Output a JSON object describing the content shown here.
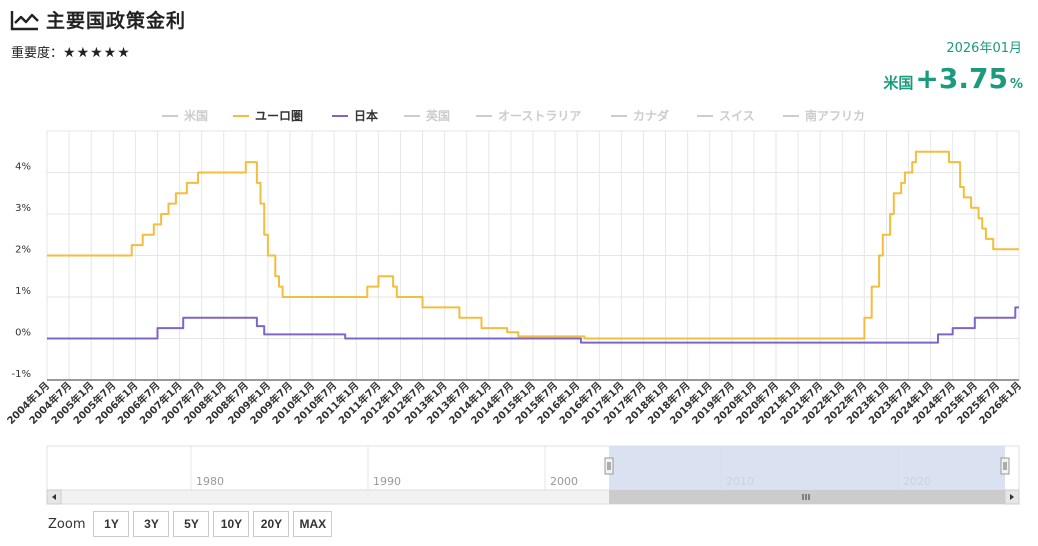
{
  "header": {
    "title": "主要国政策金利",
    "importance_label": "重要度：",
    "importance_stars": "★★★★★"
  },
  "current_rate": {
    "date": "2026年01月",
    "country": "米国",
    "value": "+3.75",
    "unit": "%"
  },
  "zoom": {
    "label": "Zoom",
    "buttons": [
      "1Y",
      "3Y",
      "5Y",
      "10Y",
      "20Y",
      "MAX"
    ]
  },
  "navigator": {
    "decades": [
      "1980",
      "1990",
      "2000",
      "2010",
      "2020"
    ]
  },
  "colors": {
    "euro": "#f3bd3e",
    "japan": "#8065c9",
    "hidden": "#cccccc",
    "accent": "#1a9b7d",
    "navigator_mask": "#d3dcef"
  },
  "chart_data": {
    "type": "line",
    "step": true,
    "legend_position": "top",
    "legend": [
      {
        "name": "米国",
        "visible": false
      },
      {
        "name": "ユーロ圏",
        "visible": true
      },
      {
        "name": "日本",
        "visible": true
      },
      {
        "name": "英国",
        "visible": false
      },
      {
        "name": "オーストラリア",
        "visible": false
      },
      {
        "name": "カナダ",
        "visible": false
      },
      {
        "name": "スイス",
        "visible": false
      },
      {
        "name": "南アフリカ",
        "visible": false
      }
    ],
    "ylim": [
      -1,
      5
    ],
    "ytick_labels": [
      "-1%",
      "0%",
      "1%",
      "2%",
      "3%",
      "4%"
    ],
    "xlim": [
      "2004年1月",
      "2026年1月"
    ],
    "xtick_labels": [
      "2004年1月",
      "2004年7月",
      "2005年1月",
      "2005年7月",
      "2006年1月",
      "2006年7月",
      "2007年1月",
      "2007年7月",
      "2008年1月",
      "2008年7月",
      "2009年1月",
      "2009年7月",
      "2010年1月",
      "2010年7月",
      "2011年1月",
      "2011年7月",
      "2012年1月",
      "2012年7月",
      "2013年1月",
      "2013年7月",
      "2014年1月",
      "2014年7月",
      "2015年1月",
      "2015年7月",
      "2016年1月",
      "2016年7月",
      "2017年1月",
      "2017年7月",
      "2018年1月",
      "2018年7月",
      "2019年1月",
      "2019年7月",
      "2020年1月",
      "2020年7月",
      "2021年1月",
      "2021年7月",
      "2022年1月",
      "2022年7月",
      "2023年1月",
      "2023年7月",
      "2024年1月",
      "2024年7月",
      "2025年1月",
      "2025年7月",
      "2026年1月"
    ],
    "grid": true,
    "series": [
      {
        "name": "ユーロ圏",
        "color": "#f3bd3e",
        "points": [
          [
            "2004-01",
            2.0
          ],
          [
            "2005-12",
            2.25
          ],
          [
            "2006-03",
            2.5
          ],
          [
            "2006-06",
            2.75
          ],
          [
            "2006-08",
            3.0
          ],
          [
            "2006-10",
            3.25
          ],
          [
            "2006-12",
            3.5
          ],
          [
            "2007-03",
            3.75
          ],
          [
            "2007-06",
            4.0
          ],
          [
            "2008-07",
            4.25
          ],
          [
            "2008-10",
            3.75
          ],
          [
            "2008-11",
            3.25
          ],
          [
            "2008-12",
            2.5
          ],
          [
            "2009-01",
            2.0
          ],
          [
            "2009-03",
            1.5
          ],
          [
            "2009-04",
            1.25
          ],
          [
            "2009-05",
            1.0
          ],
          [
            "2011-04",
            1.25
          ],
          [
            "2011-07",
            1.5
          ],
          [
            "2011-11",
            1.25
          ],
          [
            "2011-12",
            1.0
          ],
          [
            "2012-07",
            0.75
          ],
          [
            "2013-05",
            0.5
          ],
          [
            "2013-11",
            0.25
          ],
          [
            "2014-06",
            0.15
          ],
          [
            "2014-09",
            0.05
          ],
          [
            "2016-03",
            0.0
          ],
          [
            "2022-07",
            0.5
          ],
          [
            "2022-09",
            1.25
          ],
          [
            "2022-11",
            2.0
          ],
          [
            "2022-12",
            2.5
          ],
          [
            "2023-02",
            3.0
          ],
          [
            "2023-03",
            3.5
          ],
          [
            "2023-05",
            3.75
          ],
          [
            "2023-06",
            4.0
          ],
          [
            "2023-08",
            4.25
          ],
          [
            "2023-09",
            4.5
          ],
          [
            "2024-06",
            4.25
          ],
          [
            "2024-09",
            3.65
          ],
          [
            "2024-10",
            3.4
          ],
          [
            "2024-12",
            3.15
          ],
          [
            "2025-02",
            2.9
          ],
          [
            "2025-03",
            2.65
          ],
          [
            "2025-04",
            2.4
          ],
          [
            "2025-06",
            2.15
          ],
          [
            "2026-01",
            2.15
          ]
        ]
      },
      {
        "name": "日本",
        "color": "#8065c9",
        "points": [
          [
            "2004-01",
            0.0
          ],
          [
            "2006-07",
            0.25
          ],
          [
            "2007-02",
            0.5
          ],
          [
            "2008-10",
            0.3
          ],
          [
            "2008-12",
            0.1
          ],
          [
            "2010-10",
            0.0
          ],
          [
            "2016-02",
            -0.1
          ],
          [
            "2024-03",
            0.1
          ],
          [
            "2024-07",
            0.25
          ],
          [
            "2025-01",
            0.5
          ],
          [
            "2025-12",
            0.75
          ],
          [
            "2026-01",
            0.75
          ]
        ]
      }
    ]
  }
}
